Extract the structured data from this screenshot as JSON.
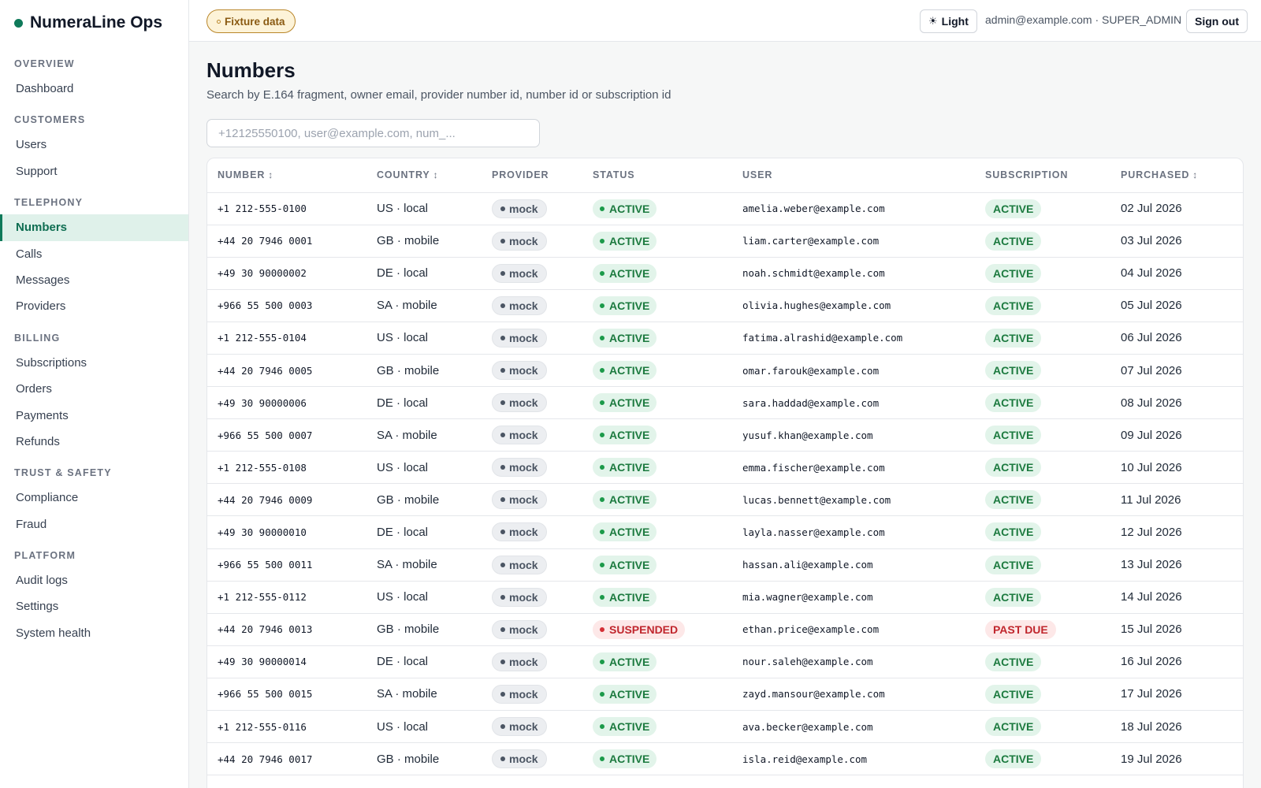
{
  "brand": {
    "name": "NumeraLine Ops",
    "accent": "#0f7a5a"
  },
  "sidebar": {
    "sections": [
      {
        "title": "OVERVIEW",
        "items": [
          {
            "label": "Dashboard"
          }
        ]
      },
      {
        "title": "CUSTOMERS",
        "items": [
          {
            "label": "Users"
          },
          {
            "label": "Support"
          }
        ]
      },
      {
        "title": "TELEPHONY",
        "items": [
          {
            "label": "Numbers",
            "active": true
          },
          {
            "label": "Calls"
          },
          {
            "label": "Messages"
          },
          {
            "label": "Providers"
          }
        ]
      },
      {
        "title": "BILLING",
        "items": [
          {
            "label": "Subscriptions"
          },
          {
            "label": "Orders"
          },
          {
            "label": "Payments"
          },
          {
            "label": "Refunds"
          }
        ]
      },
      {
        "title": "TRUST & SAFETY",
        "items": [
          {
            "label": "Compliance"
          },
          {
            "label": "Fraud"
          }
        ]
      },
      {
        "title": "PLATFORM",
        "items": [
          {
            "label": "Audit logs"
          },
          {
            "label": "Settings"
          },
          {
            "label": "System health"
          }
        ]
      }
    ]
  },
  "topbar": {
    "fixture_badge": "Fixture data",
    "theme_label": "Light",
    "theme_icon": "sun-icon",
    "user": "admin@example.com · SUPER_ADMIN",
    "signout_label": "Sign out"
  },
  "main": {
    "title": "Numbers",
    "subtitle": "Search by E.164 fragment, owner email, provider number id, number id or subscription id",
    "search_placeholder": "+12125550100, user@example.com, num_..."
  },
  "table": {
    "columns": [
      {
        "label": "NUMBER",
        "sortable": true
      },
      {
        "label": "COUNTRY",
        "sortable": true
      },
      {
        "label": "PROVIDER",
        "sortable": false
      },
      {
        "label": "STATUS",
        "sortable": false
      },
      {
        "label": "USER",
        "sortable": false
      },
      {
        "label": "SUBSCRIPTION",
        "sortable": false
      },
      {
        "label": "PURCHASED",
        "sortable": true
      }
    ],
    "rows": [
      {
        "number": "+1 212-555-0100",
        "country": "US · local",
        "provider": "mock",
        "status": "ACTIVE",
        "user": "amelia.weber@example.com",
        "subscription": "ACTIVE",
        "purchased": "02 Jul 2026"
      },
      {
        "number": "+44 20 7946 0001",
        "country": "GB · mobile",
        "provider": "mock",
        "status": "ACTIVE",
        "user": "liam.carter@example.com",
        "subscription": "ACTIVE",
        "purchased": "03 Jul 2026"
      },
      {
        "number": "+49 30 90000002",
        "country": "DE · local",
        "provider": "mock",
        "status": "ACTIVE",
        "user": "noah.schmidt@example.com",
        "subscription": "ACTIVE",
        "purchased": "04 Jul 2026"
      },
      {
        "number": "+966 55 500 0003",
        "country": "SA · mobile",
        "provider": "mock",
        "status": "ACTIVE",
        "user": "olivia.hughes@example.com",
        "subscription": "ACTIVE",
        "purchased": "05 Jul 2026"
      },
      {
        "number": "+1 212-555-0104",
        "country": "US · local",
        "provider": "mock",
        "status": "ACTIVE",
        "user": "fatima.alrashid@example.com",
        "subscription": "ACTIVE",
        "purchased": "06 Jul 2026"
      },
      {
        "number": "+44 20 7946 0005",
        "country": "GB · mobile",
        "provider": "mock",
        "status": "ACTIVE",
        "user": "omar.farouk@example.com",
        "subscription": "ACTIVE",
        "purchased": "07 Jul 2026"
      },
      {
        "number": "+49 30 90000006",
        "country": "DE · local",
        "provider": "mock",
        "status": "ACTIVE",
        "user": "sara.haddad@example.com",
        "subscription": "ACTIVE",
        "purchased": "08 Jul 2026"
      },
      {
        "number": "+966 55 500 0007",
        "country": "SA · mobile",
        "provider": "mock",
        "status": "ACTIVE",
        "user": "yusuf.khan@example.com",
        "subscription": "ACTIVE",
        "purchased": "09 Jul 2026"
      },
      {
        "number": "+1 212-555-0108",
        "country": "US · local",
        "provider": "mock",
        "status": "ACTIVE",
        "user": "emma.fischer@example.com",
        "subscription": "ACTIVE",
        "purchased": "10 Jul 2026"
      },
      {
        "number": "+44 20 7946 0009",
        "country": "GB · mobile",
        "provider": "mock",
        "status": "ACTIVE",
        "user": "lucas.bennett@example.com",
        "subscription": "ACTIVE",
        "purchased": "11 Jul 2026"
      },
      {
        "number": "+49 30 90000010",
        "country": "DE · local",
        "provider": "mock",
        "status": "ACTIVE",
        "user": "layla.nasser@example.com",
        "subscription": "ACTIVE",
        "purchased": "12 Jul 2026"
      },
      {
        "number": "+966 55 500 0011",
        "country": "SA · mobile",
        "provider": "mock",
        "status": "ACTIVE",
        "user": "hassan.ali@example.com",
        "subscription": "ACTIVE",
        "purchased": "13 Jul 2026"
      },
      {
        "number": "+1 212-555-0112",
        "country": "US · local",
        "provider": "mock",
        "status": "ACTIVE",
        "user": "mia.wagner@example.com",
        "subscription": "ACTIVE",
        "purchased": "14 Jul 2026"
      },
      {
        "number": "+44 20 7946 0013",
        "country": "GB · mobile",
        "provider": "mock",
        "status": "SUSPENDED",
        "user": "ethan.price@example.com",
        "subscription": "PAST DUE",
        "purchased": "15 Jul 2026"
      },
      {
        "number": "+49 30 90000014",
        "country": "DE · local",
        "provider": "mock",
        "status": "ACTIVE",
        "user": "nour.saleh@example.com",
        "subscription": "ACTIVE",
        "purchased": "16 Jul 2026"
      },
      {
        "number": "+966 55 500 0015",
        "country": "SA · mobile",
        "provider": "mock",
        "status": "ACTIVE",
        "user": "zayd.mansour@example.com",
        "subscription": "ACTIVE",
        "purchased": "17 Jul 2026"
      },
      {
        "number": "+1 212-555-0116",
        "country": "US · local",
        "provider": "mock",
        "status": "ACTIVE",
        "user": "ava.becker@example.com",
        "subscription": "ACTIVE",
        "purchased": "18 Jul 2026"
      },
      {
        "number": "+44 20 7946 0017",
        "country": "GB · mobile",
        "provider": "mock",
        "status": "ACTIVE",
        "user": "isla.reid@example.com",
        "subscription": "ACTIVE",
        "purchased": "19 Jul 2026"
      }
    ]
  },
  "colors": {
    "active_bg": "#e2f4ea",
    "active_fg": "#1c7a3f",
    "danger_bg": "#fde8e8",
    "danger_fg": "#c0262d",
    "fixture_bg": "#fdf3d8"
  }
}
